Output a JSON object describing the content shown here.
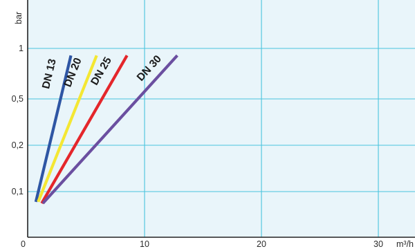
{
  "chart_data": {
    "type": "line",
    "y_unit": "bar",
    "x_unit": "m³/h",
    "x_ticks": [
      {
        "value": 0,
        "label": "0"
      },
      {
        "value": 10,
        "label": "10"
      },
      {
        "value": 20,
        "label": "20"
      },
      {
        "value": 30,
        "label": "30"
      }
    ],
    "y_ticks": [
      {
        "value": 0.1,
        "label": "0,1"
      },
      {
        "value": 0.2,
        "label": "0,2"
      },
      {
        "value": 0.5,
        "label": "0,5"
      },
      {
        "value": 1,
        "label": "1"
      }
    ],
    "xlim": [
      0,
      33
    ],
    "grid": true,
    "series": [
      {
        "name": "DN 13",
        "color": "#2e56a4",
        "points": [
          [
            0.7,
            0.072
          ],
          [
            3.7,
            0.93
          ]
        ]
      },
      {
        "name": "DN 20",
        "color": "#f4e733",
        "points": [
          [
            0.9,
            0.072
          ],
          [
            5.9,
            0.93
          ]
        ]
      },
      {
        "name": "DN 25",
        "color": "#e4262b",
        "points": [
          [
            1.2,
            0.068
          ],
          [
            8.5,
            0.93
          ]
        ]
      },
      {
        "name": "DN 30",
        "color": "#6b4fa0",
        "points": [
          [
            1.3,
            0.068
          ],
          [
            12.8,
            0.93
          ]
        ]
      }
    ]
  }
}
